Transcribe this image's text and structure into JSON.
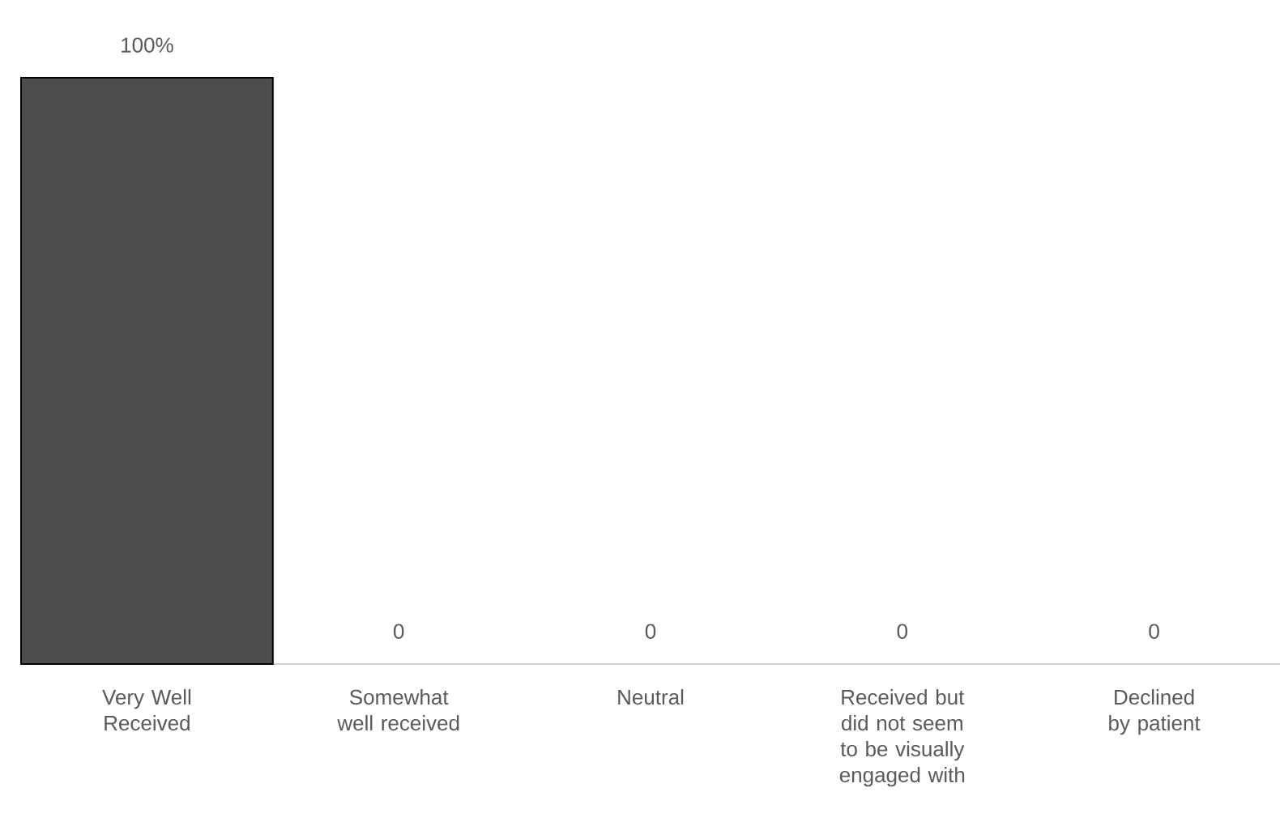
{
  "chart_data": {
    "type": "bar",
    "categories": [
      "Very Well Received",
      "Somewhat well received",
      "Neutral",
      "Received but did not seem to be visually engaged with",
      "Declined by patient"
    ],
    "values": [
      100,
      0,
      0,
      0,
      0
    ],
    "value_labels": [
      "100%",
      "0",
      "0",
      "0",
      "0"
    ],
    "color": "#4d4d4d"
  }
}
